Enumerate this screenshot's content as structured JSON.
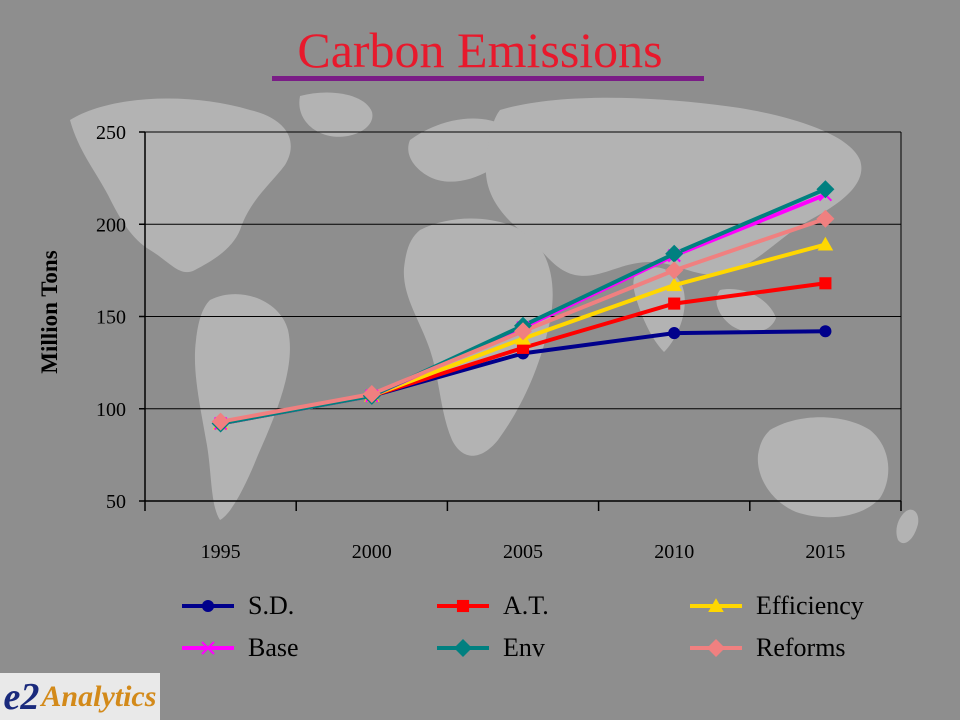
{
  "chart_data": {
    "type": "line",
    "title": "Carbon Emissions",
    "xlabel": "",
    "ylabel": "Million Tons",
    "categories": [
      "1995",
      "2000",
      "2005",
      "2010",
      "2015"
    ],
    "ylim": [
      50,
      250
    ],
    "yticks": [
      50,
      100,
      150,
      200,
      250
    ],
    "grid": true,
    "legend_position": "bottom",
    "series": [
      {
        "name": "S.D.",
        "color": "#00008b",
        "marker": "circle",
        "values": [
          92,
          107,
          130,
          141,
          142
        ]
      },
      {
        "name": "A.T.",
        "color": "#ff0000",
        "marker": "square",
        "values": [
          92,
          107,
          133,
          157,
          168
        ]
      },
      {
        "name": "Efficiency",
        "color": "#ffd700",
        "marker": "triangle",
        "values": [
          92,
          107,
          138,
          167,
          189
        ]
      },
      {
        "name": "Base",
        "color": "#ff00ff",
        "marker": "x",
        "values": [
          92,
          107,
          144,
          183,
          216
        ]
      },
      {
        "name": "Env",
        "color": "#008080",
        "marker": "diamond",
        "values": [
          92,
          107,
          145,
          184,
          219
        ]
      },
      {
        "name": "Reforms",
        "color": "#f08080",
        "marker": "diamond",
        "values": [
          93,
          108,
          142,
          175,
          203
        ]
      }
    ]
  },
  "logo": {
    "e2": "e2",
    "rest": "Analytics"
  }
}
